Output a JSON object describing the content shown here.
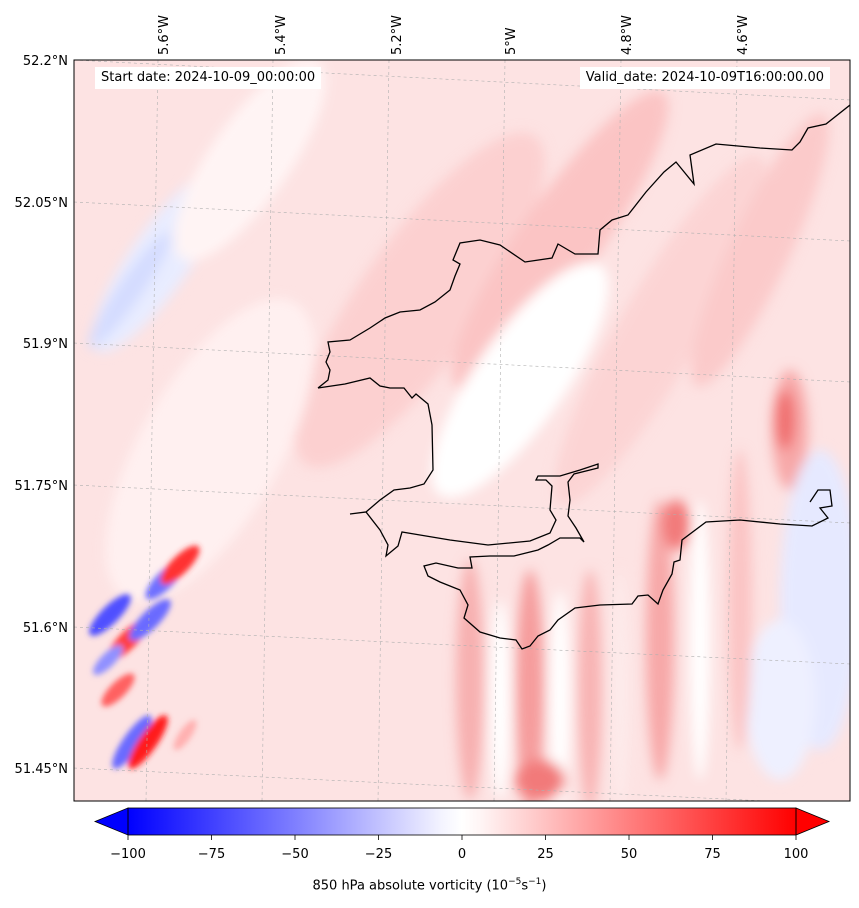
{
  "map": {
    "start_date": "Start date: 2024-10-09_00:00:00",
    "valid_date": "Valid_date: 2024-10-09T16:00:00.00",
    "lon_labels": [
      "5.6°W",
      "5.4°W",
      "5.2°W",
      "5°W",
      "4.8°W",
      "4.6°W"
    ],
    "lat_labels": [
      "52.2°N",
      "52.05°N",
      "51.9°N",
      "51.75°N",
      "51.6°N",
      "51.45°N"
    ],
    "colors": {
      "negative": "#0000ff",
      "neutral": "#ffffff",
      "positive": "#ff0000",
      "coastline": "#000000"
    }
  },
  "colorbar": {
    "ticks": [
      "−100",
      "−75",
      "−50",
      "−25",
      "0",
      "25",
      "50",
      "75",
      "100"
    ],
    "label": "850 hPa absolute vorticity (10",
    "label_unit_exp": "−5",
    "label_mid": "s",
    "label_unit_exp2": "−1",
    "label_end": ")",
    "min": -100,
    "max": 100
  }
}
